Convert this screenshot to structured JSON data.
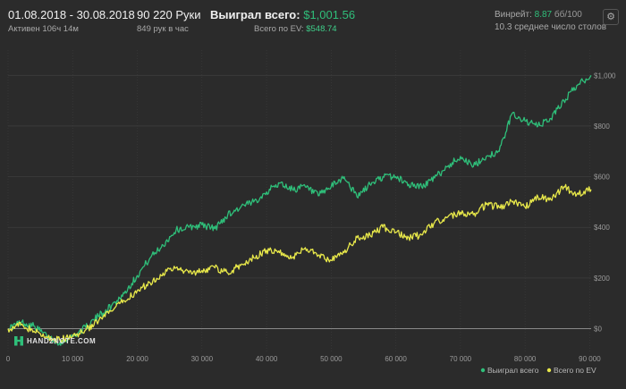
{
  "header": {
    "period": "01.08.2018 - 30.08.2018",
    "active": "Активен 106ч 14м",
    "hands": "90 220 Руки",
    "hands_per_hour": "849 рук в час",
    "won_label": "Выиграл всего:",
    "won_value": "$1,001.56",
    "ev_label": "Всего по EV:",
    "ev_value": "$548.74",
    "winrate_label": "Винрейт:",
    "winrate_value": "8.87",
    "winrate_bb": "бб/100",
    "tables": "10.3 среднее число столов"
  },
  "logo": {
    "text": "HAND2NOTE.COM"
  },
  "colors": {
    "won": "#2fbf7a",
    "ev": "#e8e84a",
    "background": "#2b2b2b",
    "grid": "#3d3d3d"
  },
  "icons": {
    "settings": "gear-icon",
    "logo": "hand2note-logo-icon"
  },
  "chart_data": {
    "type": "line",
    "xlim": [
      0,
      90220
    ],
    "ylim": [
      -90,
      1100
    ],
    "x_ticks": [
      0,
      10000,
      20000,
      30000,
      40000,
      50000,
      60000,
      70000,
      80000,
      90000
    ],
    "x_tick_labels": [
      "0",
      "10 000",
      "20 000",
      "30 000",
      "40 000",
      "50 000",
      "60 000",
      "70 000",
      "80 000",
      "90 000"
    ],
    "y_ticks": [
      0,
      200,
      400,
      600,
      800,
      1000
    ],
    "y_tick_labels": [
      "$0",
      "$200",
      "$400",
      "$600",
      "$800",
      "$1,000"
    ],
    "grid": true,
    "legend": "bottom-right",
    "series": [
      {
        "name": "Выиграл всего",
        "color": "#2fbf7a",
        "x": [
          0,
          2000,
          4000,
          6000,
          8000,
          10000,
          12000,
          14000,
          16000,
          18000,
          20000,
          22000,
          24000,
          26000,
          28000,
          30000,
          32000,
          34000,
          36000,
          38000,
          40000,
          42000,
          44000,
          46000,
          48000,
          50000,
          52000,
          54000,
          56000,
          58000,
          60000,
          62000,
          64000,
          66000,
          68000,
          70000,
          72000,
          74000,
          76000,
          78000,
          80000,
          82000,
          84000,
          86000,
          88000,
          90220
        ],
        "y": [
          0,
          25,
          10,
          -30,
          -55,
          -30,
          5,
          50,
          90,
          140,
          210,
          280,
          330,
          390,
          400,
          410,
          395,
          450,
          480,
          500,
          540,
          575,
          550,
          560,
          525,
          560,
          600,
          520,
          570,
          600,
          600,
          570,
          560,
          595,
          640,
          680,
          640,
          680,
          700,
          850,
          820,
          800,
          830,
          900,
          960,
          1000
        ]
      },
      {
        "name": "Всего по EV",
        "color": "#e8e84a",
        "x": [
          0,
          2000,
          4000,
          6000,
          8000,
          10000,
          12000,
          14000,
          16000,
          18000,
          20000,
          22000,
          24000,
          26000,
          28000,
          30000,
          32000,
          34000,
          36000,
          38000,
          40000,
          42000,
          44000,
          46000,
          48000,
          50000,
          52000,
          54000,
          56000,
          58000,
          60000,
          62000,
          64000,
          66000,
          68000,
          70000,
          72000,
          74000,
          76000,
          78000,
          80000,
          82000,
          84000,
          86000,
          88000,
          90220
        ],
        "y": [
          0,
          15,
          -10,
          -35,
          -45,
          -30,
          -5,
          30,
          70,
          110,
          150,
          180,
          220,
          240,
          220,
          230,
          240,
          220,
          250,
          280,
          310,
          300,
          280,
          320,
          290,
          270,
          300,
          360,
          370,
          400,
          380,
          360,
          370,
          420,
          440,
          460,
          450,
          490,
          480,
          500,
          480,
          520,
          510,
          560,
          530,
          550
        ]
      }
    ]
  }
}
